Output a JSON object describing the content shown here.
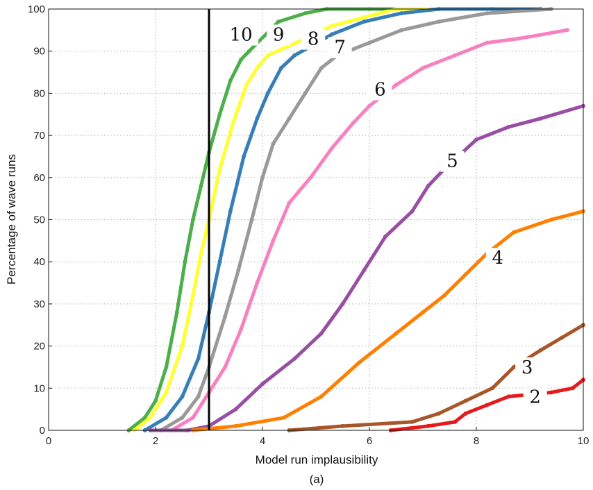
{
  "caption": "(a)",
  "chart_data": {
    "type": "scatter",
    "title": "",
    "xlabel": "Model run implausibility",
    "ylabel": "Percentage of wave runs",
    "xlim": [
      0,
      10
    ],
    "ylim": [
      0,
      100
    ],
    "xticks": [
      "0",
      "2",
      "4",
      "6",
      "8",
      "10"
    ],
    "yticks": [
      "0",
      "10",
      "20",
      "30",
      "40",
      "50",
      "60",
      "70",
      "80",
      "90",
      "100"
    ],
    "grid": true,
    "cutoff_line_x": 3,
    "series": [
      {
        "label": "10",
        "color": "#4daf4a",
        "label_pos": [
          3.6,
          93
        ],
        "points": [
          [
            1.5,
            0
          ],
          [
            1.8,
            3
          ],
          [
            2.0,
            7
          ],
          [
            2.2,
            15
          ],
          [
            2.4,
            28
          ],
          [
            2.55,
            40
          ],
          [
            2.7,
            50
          ],
          [
            2.85,
            58
          ],
          [
            3.0,
            66
          ],
          [
            3.2,
            75
          ],
          [
            3.4,
            83
          ],
          [
            3.6,
            88
          ],
          [
            3.75,
            90
          ],
          [
            4.3,
            97
          ],
          [
            4.8,
            99
          ],
          [
            5.2,
            100
          ],
          [
            6.0,
            100
          ],
          [
            8.3,
            100
          ]
        ]
      },
      {
        "label": "9",
        "color": "#ffff33",
        "label_pos": [
          4.3,
          93
        ],
        "points": [
          [
            1.6,
            0
          ],
          [
            1.9,
            3
          ],
          [
            2.2,
            9
          ],
          [
            2.5,
            20
          ],
          [
            2.7,
            32
          ],
          [
            2.85,
            42
          ],
          [
            3.0,
            50
          ],
          [
            3.2,
            62
          ],
          [
            3.45,
            73
          ],
          [
            3.7,
            82
          ],
          [
            3.9,
            86
          ],
          [
            4.1,
            89
          ],
          [
            4.8,
            93
          ],
          [
            5.3,
            96
          ],
          [
            5.9,
            98
          ],
          [
            6.5,
            100
          ],
          [
            7.3,
            100
          ]
        ]
      },
      {
        "label": "8",
        "color": "#377eb8",
        "label_pos": [
          4.95,
          92
        ],
        "points": [
          [
            1.8,
            0
          ],
          [
            2.2,
            3
          ],
          [
            2.5,
            8
          ],
          [
            2.8,
            17
          ],
          [
            3.0,
            28
          ],
          [
            3.2,
            40
          ],
          [
            3.4,
            52
          ],
          [
            3.65,
            65
          ],
          [
            3.9,
            74
          ],
          [
            4.1,
            80
          ],
          [
            4.35,
            86
          ],
          [
            4.6,
            89
          ],
          [
            5.3,
            94
          ],
          [
            5.9,
            97
          ],
          [
            6.6,
            99
          ],
          [
            7.3,
            100
          ],
          [
            9.2,
            100
          ]
        ]
      },
      {
        "label": "7",
        "color": "#999999",
        "label_pos": [
          5.45,
          90
        ],
        "points": [
          [
            2.1,
            0
          ],
          [
            2.5,
            3
          ],
          [
            2.8,
            8
          ],
          [
            3.0,
            15
          ],
          [
            3.3,
            27
          ],
          [
            3.55,
            38
          ],
          [
            3.8,
            50
          ],
          [
            4.0,
            60
          ],
          [
            4.2,
            68
          ],
          [
            4.5,
            74
          ],
          [
            4.8,
            80
          ],
          [
            5.1,
            86
          ],
          [
            5.4,
            89
          ],
          [
            6.0,
            92
          ],
          [
            6.6,
            95
          ],
          [
            7.3,
            97
          ],
          [
            8.2,
            99
          ],
          [
            9.4,
            100
          ]
        ]
      },
      {
        "label": "6",
        "color": "#f781bf",
        "label_pos": [
          6.2,
          80
        ],
        "points": [
          [
            2.3,
            0
          ],
          [
            2.7,
            3
          ],
          [
            3.0,
            9
          ],
          [
            3.3,
            15
          ],
          [
            3.6,
            24
          ],
          [
            3.9,
            35
          ],
          [
            4.2,
            45
          ],
          [
            4.5,
            54
          ],
          [
            4.9,
            60
          ],
          [
            5.3,
            67
          ],
          [
            5.7,
            73
          ],
          [
            6.0,
            77
          ],
          [
            6.5,
            82
          ],
          [
            7.0,
            86
          ],
          [
            7.6,
            89
          ],
          [
            8.2,
            92
          ],
          [
            8.8,
            93
          ],
          [
            9.7,
            95
          ]
        ]
      },
      {
        "label": "5",
        "color": "#984ea3",
        "label_pos": [
          7.55,
          63
        ],
        "points": [
          [
            1.9,
            0
          ],
          [
            2.6,
            0
          ],
          [
            3.0,
            1
          ],
          [
            3.5,
            5
          ],
          [
            4.0,
            11
          ],
          [
            4.6,
            17
          ],
          [
            5.1,
            23
          ],
          [
            5.5,
            30
          ],
          [
            5.9,
            38
          ],
          [
            6.3,
            46
          ],
          [
            6.8,
            52
          ],
          [
            7.1,
            58
          ],
          [
            7.4,
            62
          ],
          [
            8.0,
            69
          ],
          [
            8.6,
            72
          ],
          [
            9.2,
            74
          ],
          [
            10.0,
            77
          ]
        ]
      },
      {
        "label": "4",
        "color": "#ff7f00",
        "label_pos": [
          8.4,
          40
        ],
        "points": [
          [
            2.7,
            0
          ],
          [
            3.5,
            1
          ],
          [
            4.4,
            3
          ],
          [
            5.1,
            8
          ],
          [
            5.8,
            16
          ],
          [
            6.5,
            23
          ],
          [
            7.0,
            28
          ],
          [
            7.4,
            32
          ],
          [
            7.8,
            37
          ],
          [
            8.2,
            42
          ],
          [
            8.7,
            47
          ],
          [
            9.4,
            50
          ],
          [
            10.0,
            52
          ]
        ]
      },
      {
        "label": "3",
        "color": "#a65628",
        "label_pos": [
          8.95,
          14
        ],
        "points": [
          [
            4.5,
            0
          ],
          [
            5.5,
            1
          ],
          [
            6.8,
            2
          ],
          [
            7.3,
            4
          ],
          [
            7.8,
            7
          ],
          [
            8.3,
            10
          ],
          [
            8.7,
            15
          ],
          [
            9.2,
            19
          ],
          [
            9.6,
            22
          ],
          [
            10.0,
            25
          ]
        ]
      },
      {
        "label": "2",
        "color": "#e41a1c",
        "label_pos": [
          9.1,
          7
        ],
        "points": [
          [
            6.4,
            0
          ],
          [
            7.1,
            1
          ],
          [
            7.6,
            2
          ],
          [
            7.8,
            4
          ],
          [
            8.2,
            6
          ],
          [
            8.6,
            8
          ],
          [
            9.4,
            9
          ],
          [
            9.8,
            10
          ],
          [
            10.0,
            12
          ]
        ]
      }
    ]
  }
}
